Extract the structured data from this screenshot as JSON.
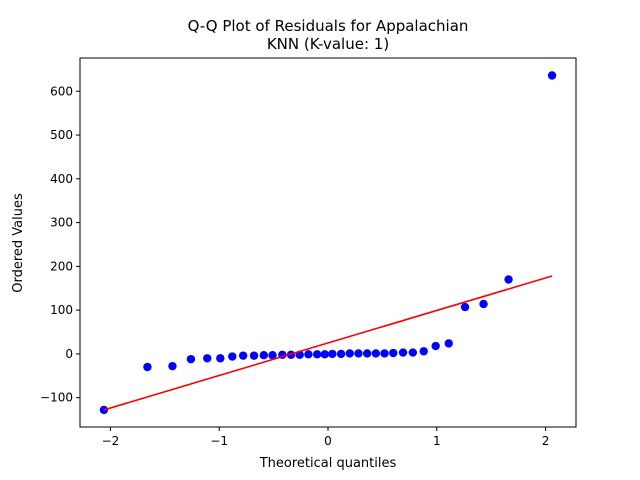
{
  "chart_data": {
    "type": "scatter",
    "title_line1": "Q-Q Plot of Residuals for Appalachian",
    "title_line2": "KNN (K-value: 1)",
    "xlabel": "Theoretical quantiles",
    "ylabel": "Ordered Values",
    "xlim": [
      -2.28,
      2.28
    ],
    "ylim": [
      -167,
      676
    ],
    "xticks": [
      -2,
      -1,
      0,
      1,
      2
    ],
    "xtick_labels": [
      "−2",
      "−1",
      "0",
      "1",
      "2"
    ],
    "yticks": [
      -100,
      0,
      100,
      200,
      300,
      400,
      500,
      600
    ],
    "ytick_labels": [
      "−100",
      "0",
      "100",
      "200",
      "300",
      "400",
      "500",
      "600"
    ],
    "grid": false,
    "colors": {
      "points": "#0000ff",
      "fit_line": "#ff0000"
    },
    "fit_line": {
      "x": [
        -2.06,
        2.06
      ],
      "y": [
        -128,
        178
      ]
    },
    "points": [
      {
        "x": -2.06,
        "y": -128
      },
      {
        "x": -1.66,
        "y": -30
      },
      {
        "x": -1.43,
        "y": -28
      },
      {
        "x": -1.26,
        "y": -12
      },
      {
        "x": -1.11,
        "y": -10
      },
      {
        "x": -0.99,
        "y": -10
      },
      {
        "x": -0.88,
        "y": -6
      },
      {
        "x": -0.78,
        "y": -4
      },
      {
        "x": -0.68,
        "y": -4
      },
      {
        "x": -0.59,
        "y": -3
      },
      {
        "x": -0.51,
        "y": -3
      },
      {
        "x": -0.42,
        "y": -2
      },
      {
        "x": -0.34,
        "y": -2
      },
      {
        "x": -0.26,
        "y": -2
      },
      {
        "x": -0.18,
        "y": -1
      },
      {
        "x": -0.1,
        "y": -1
      },
      {
        "x": -0.03,
        "y": -1
      },
      {
        "x": 0.04,
        "y": 0
      },
      {
        "x": 0.12,
        "y": 0
      },
      {
        "x": 0.2,
        "y": 1
      },
      {
        "x": 0.28,
        "y": 1
      },
      {
        "x": 0.36,
        "y": 1
      },
      {
        "x": 0.44,
        "y": 1
      },
      {
        "x": 0.52,
        "y": 1
      },
      {
        "x": 0.6,
        "y": 2
      },
      {
        "x": 0.69,
        "y": 3
      },
      {
        "x": 0.78,
        "y": 3
      },
      {
        "x": 0.88,
        "y": 6
      },
      {
        "x": 0.99,
        "y": 18
      },
      {
        "x": 1.11,
        "y": 24
      },
      {
        "x": 1.26,
        "y": 107
      },
      {
        "x": 1.43,
        "y": 114
      },
      {
        "x": 1.66,
        "y": 170
      },
      {
        "x": 2.06,
        "y": 636
      }
    ]
  }
}
